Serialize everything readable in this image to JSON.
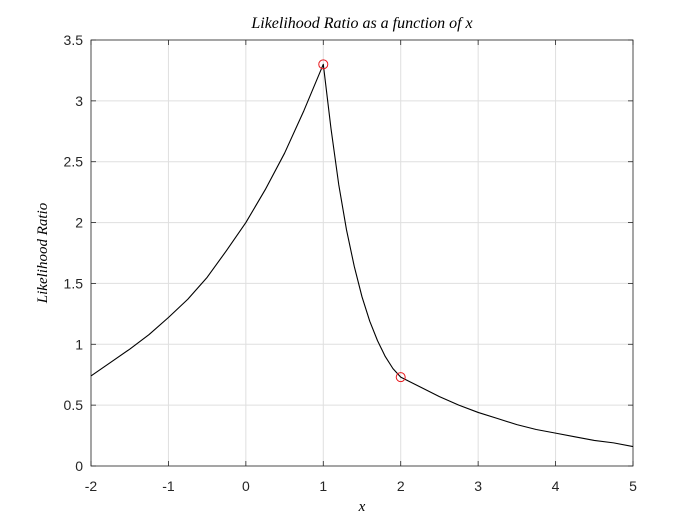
{
  "chart_data": {
    "type": "line",
    "title": "Likelihood Ratio as a function of x",
    "xlabel": "x",
    "ylabel": "Likelihood Ratio",
    "xlim": [
      -2,
      5
    ],
    "ylim": [
      0,
      3.5
    ],
    "xticks": [
      -2,
      -1,
      0,
      1,
      2,
      3,
      4,
      5
    ],
    "xtick_labels": [
      "-2",
      "-1",
      "0",
      "1",
      "2",
      "3",
      "4",
      "5"
    ],
    "yticks": [
      0,
      0.5,
      1,
      1.5,
      2,
      2.5,
      3,
      3.5
    ],
    "ytick_labels": [
      "0",
      "0.5",
      "1",
      "1.5",
      "2",
      "2.5",
      "3",
      "3.5"
    ],
    "grid": true,
    "line_color": "#000000",
    "marker_color": "#e8191d",
    "series": [
      {
        "x": [
          -2,
          -1.75,
          -1.5,
          -1.25,
          -1,
          -0.75,
          -0.5,
          -0.25,
          0,
          0.25,
          0.5,
          0.75,
          1,
          1.1,
          1.2,
          1.3,
          1.4,
          1.5,
          1.6,
          1.7,
          1.8,
          1.9,
          2,
          2.25,
          2.5,
          2.75,
          3,
          3.25,
          3.5,
          3.75,
          4,
          4.25,
          4.5,
          4.75,
          5
        ],
        "y": [
          0.74,
          0.85,
          0.96,
          1.08,
          1.22,
          1.37,
          1.55,
          1.77,
          2.0,
          2.27,
          2.57,
          2.92,
          3.3,
          2.77,
          2.31,
          1.94,
          1.64,
          1.39,
          1.19,
          1.03,
          0.9,
          0.8,
          0.73,
          0.65,
          0.57,
          0.5,
          0.44,
          0.39,
          0.34,
          0.3,
          0.27,
          0.24,
          0.21,
          0.19,
          0.16
        ]
      }
    ],
    "markers": [
      {
        "x": 1,
        "y": 3.3
      },
      {
        "x": 2,
        "y": 0.73
      }
    ]
  }
}
